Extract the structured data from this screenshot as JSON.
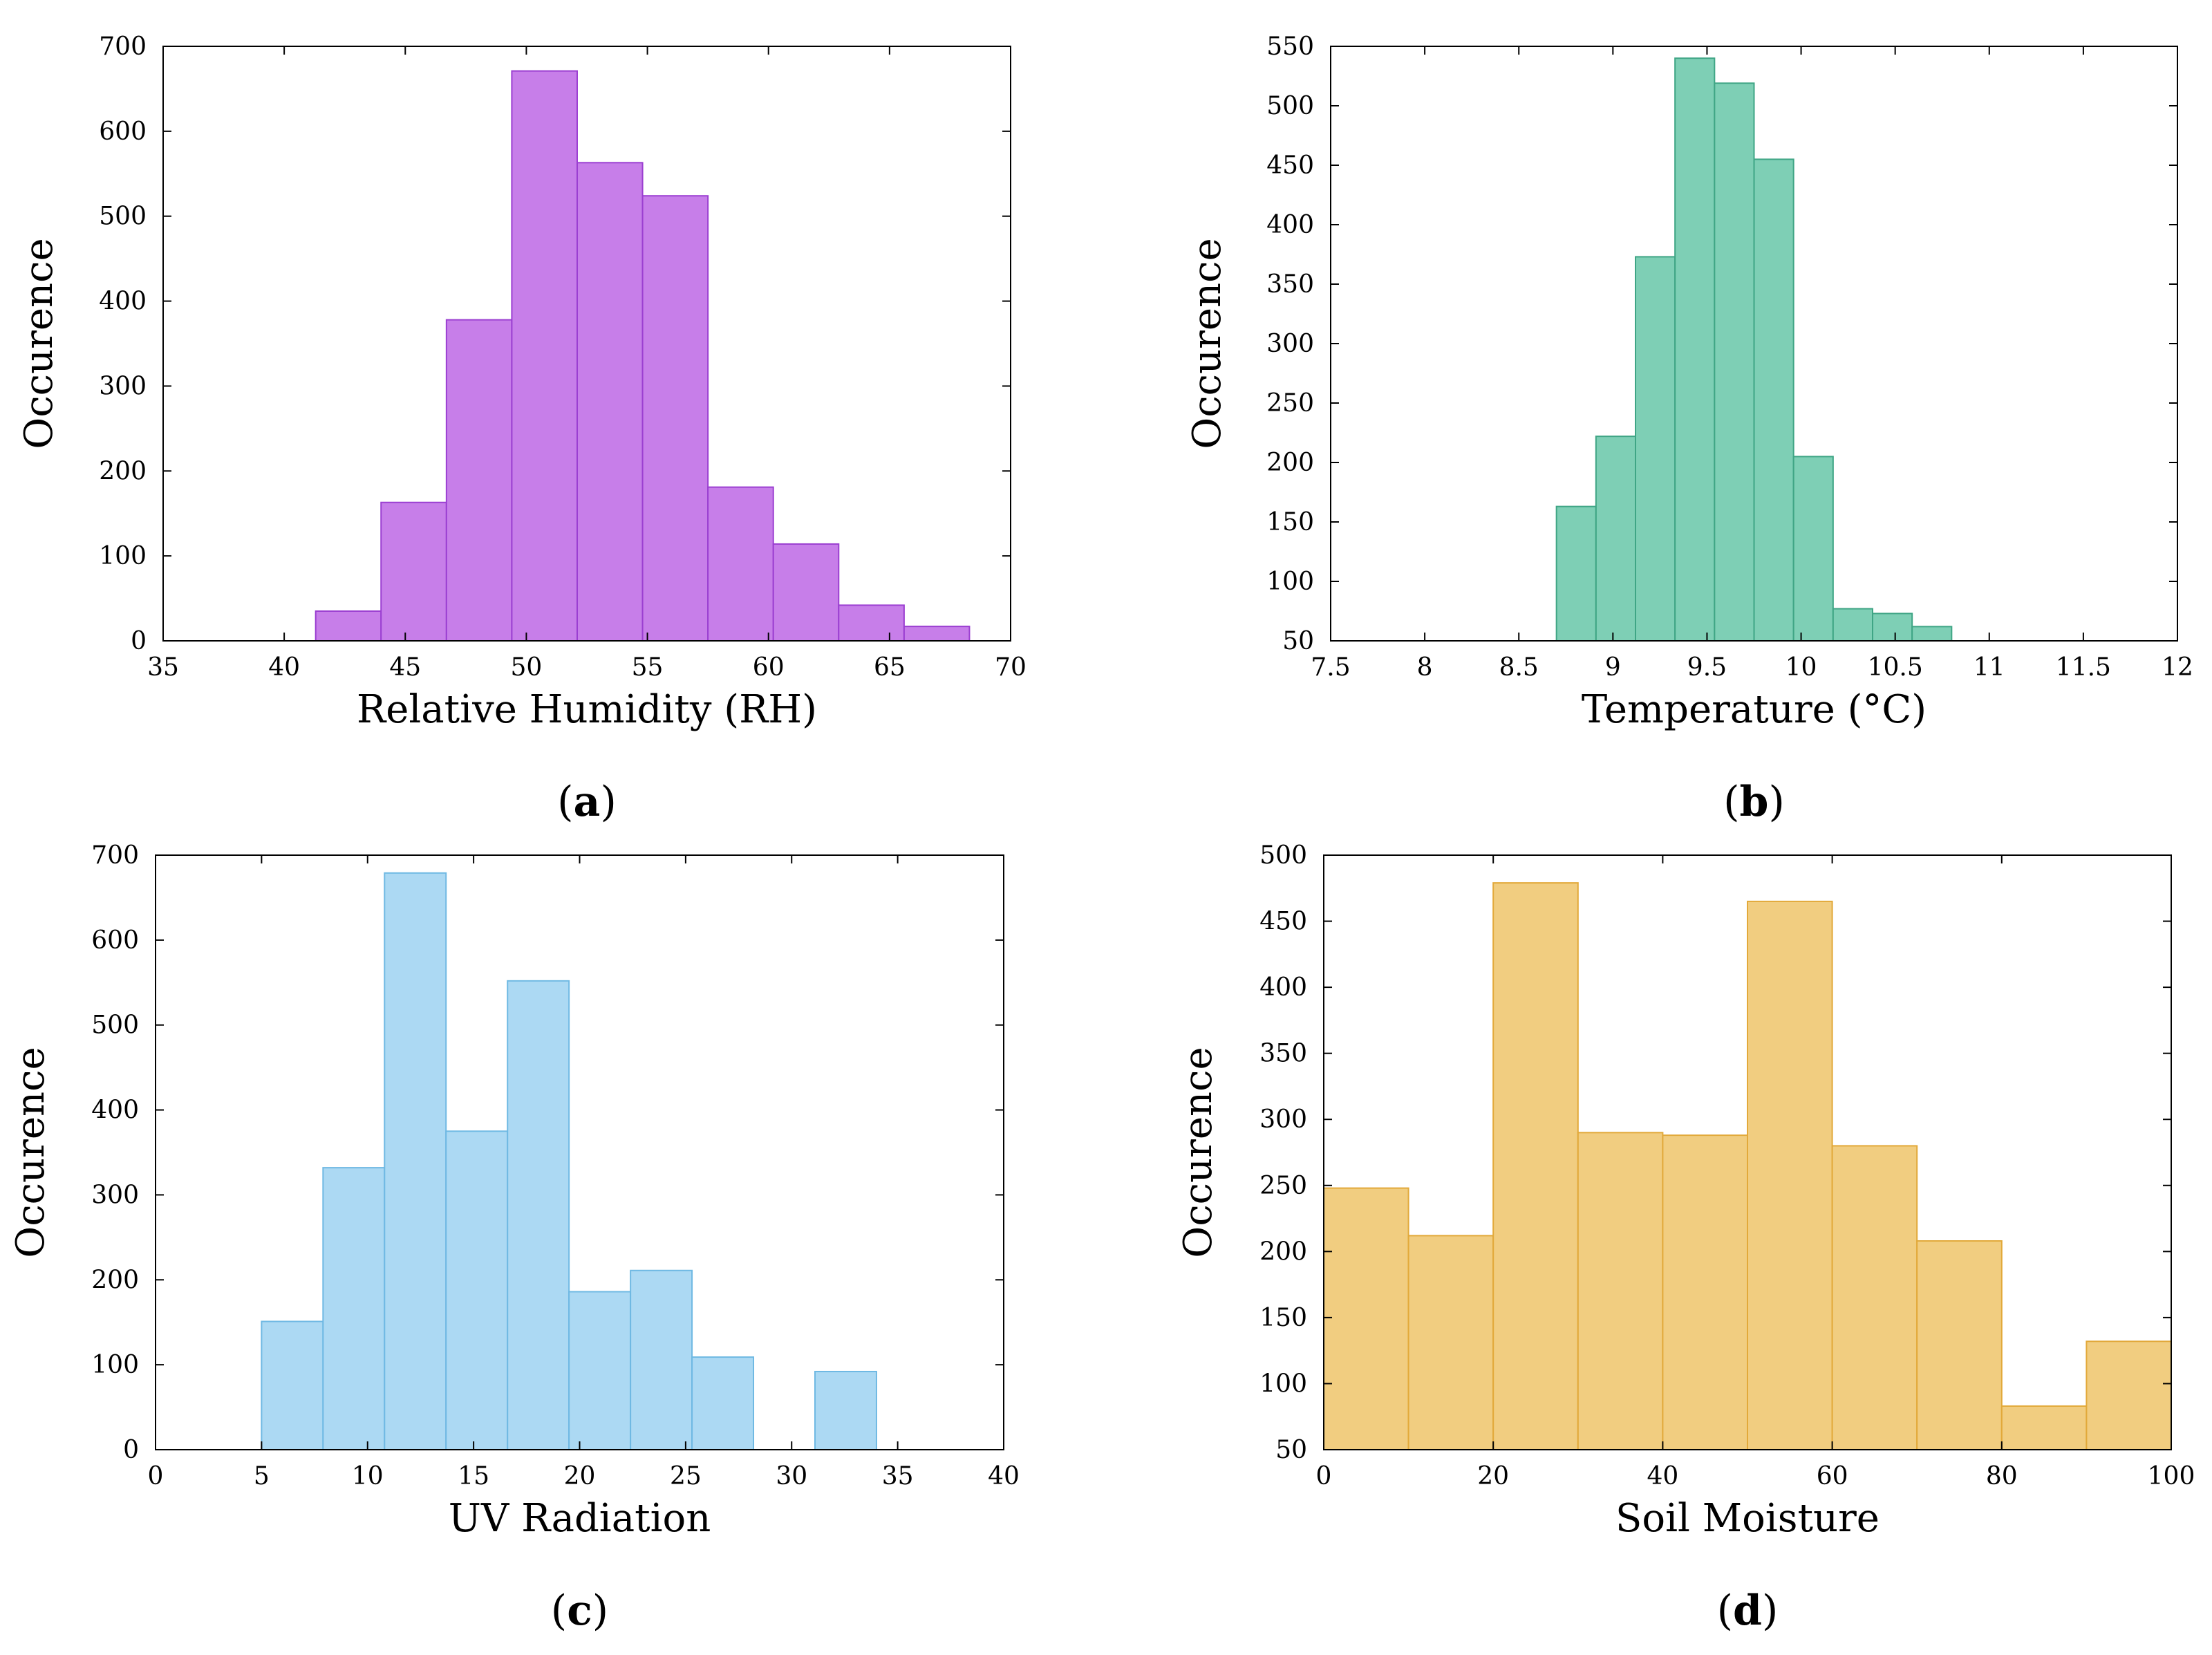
{
  "chart_data": [
    {
      "type": "bar",
      "panel_label": "a",
      "xlabel": "Relative Humidity (RH)",
      "ylabel": "Occurence",
      "xlim": [
        35,
        70
      ],
      "ylim": [
        0,
        700
      ],
      "xticks": [
        35,
        40,
        45,
        50,
        55,
        60,
        65,
        70
      ],
      "yticks": [
        0,
        100,
        200,
        300,
        400,
        500,
        600,
        700
      ],
      "bins": [
        [
          41.3,
          44.0
        ],
        [
          44.0,
          46.7
        ],
        [
          46.7,
          49.4
        ],
        [
          49.4,
          52.1
        ],
        [
          52.1,
          54.8
        ],
        [
          54.8,
          57.5
        ],
        [
          57.5,
          60.2
        ],
        [
          60.2,
          62.9
        ],
        [
          62.9,
          65.6
        ],
        [
          65.6,
          68.3
        ]
      ],
      "values": [
        35,
        163,
        378,
        671,
        563,
        524,
        181,
        114,
        42,
        17
      ],
      "fill": "#c77ee9",
      "stroke": "#9b3fd1"
    },
    {
      "type": "bar",
      "panel_label": "b",
      "xlabel": "Temperature (°C)",
      "ylabel": "Occurence",
      "xlim": [
        7.5,
        12
      ],
      "ylim": [
        50,
        550
      ],
      "xticks": [
        7.5,
        8,
        8.5,
        9,
        9.5,
        10,
        10.5,
        11,
        11.5,
        12
      ],
      "yticks": [
        50,
        100,
        150,
        200,
        250,
        300,
        350,
        400,
        450,
        500,
        550
      ],
      "bins": [
        [
          8.7,
          8.91
        ],
        [
          8.91,
          9.12
        ],
        [
          9.12,
          9.33
        ],
        [
          9.33,
          9.54
        ],
        [
          9.54,
          9.75
        ],
        [
          9.75,
          9.96
        ],
        [
          9.96,
          10.17
        ],
        [
          10.17,
          10.38
        ],
        [
          10.38,
          10.59
        ],
        [
          10.59,
          10.8
        ]
      ],
      "values": [
        163,
        222,
        373,
        540,
        519,
        455,
        205,
        77,
        73,
        62
      ],
      "fill": "#7ecfb5",
      "stroke": "#3fa585"
    },
    {
      "type": "bar",
      "panel_label": "c",
      "xlabel": "UV Radiation",
      "ylabel": "Occurence",
      "xlim": [
        0,
        40
      ],
      "ylim": [
        0,
        700
      ],
      "xticks": [
        0,
        5,
        10,
        15,
        20,
        25,
        30,
        35,
        40
      ],
      "yticks": [
        0,
        100,
        200,
        300,
        400,
        500,
        600,
        700
      ],
      "bins": [
        [
          5.0,
          7.9
        ],
        [
          7.9,
          10.8
        ],
        [
          10.8,
          13.7
        ],
        [
          13.7,
          16.6
        ],
        [
          16.6,
          19.5
        ],
        [
          19.5,
          22.4
        ],
        [
          22.4,
          25.3
        ],
        [
          25.3,
          28.2
        ],
        [
          28.2,
          31.1
        ],
        [
          31.1,
          34.0
        ]
      ],
      "values": [
        151,
        332,
        679,
        375,
        552,
        186,
        211,
        109,
        0,
        92
      ],
      "fill": "#acd9f3",
      "stroke": "#6fb9e3"
    },
    {
      "type": "bar",
      "panel_label": "d",
      "xlabel": "Soil Moisture",
      "ylabel": "Occurence",
      "xlim": [
        0,
        100
      ],
      "ylim": [
        50,
        500
      ],
      "xticks": [
        0,
        20,
        40,
        60,
        80,
        100
      ],
      "yticks": [
        50,
        100,
        150,
        200,
        250,
        300,
        350,
        400,
        450,
        500
      ],
      "bins": [
        [
          0,
          10
        ],
        [
          10,
          20
        ],
        [
          20,
          30
        ],
        [
          30,
          40
        ],
        [
          40,
          50
        ],
        [
          50,
          60
        ],
        [
          60,
          70
        ],
        [
          70,
          80
        ],
        [
          80,
          90
        ],
        [
          90,
          100
        ]
      ],
      "values": [
        248,
        212,
        479,
        290,
        288,
        465,
        280,
        208,
        83,
        132
      ],
      "fill": "#f1cd80",
      "stroke": "#e2a93a"
    }
  ]
}
